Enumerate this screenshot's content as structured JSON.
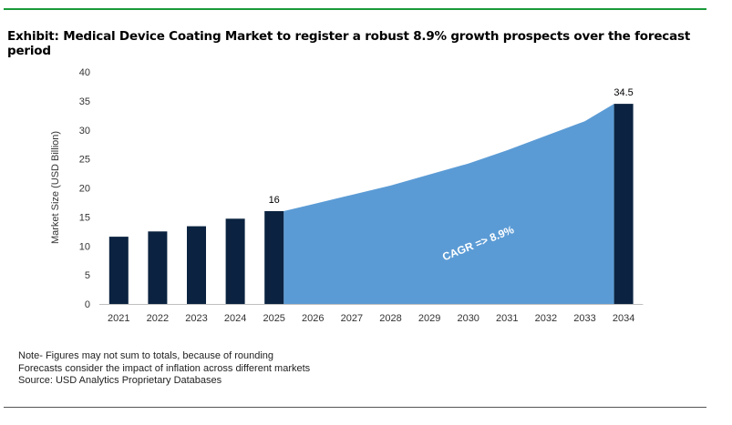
{
  "title": "Exhibit: Medical Device Coating Market to register a robust 8.9% growth prospects over the forecast period",
  "notes": [
    "Note- Figures may not sum to totals, because of rounding",
    "Forecasts consider the impact of inflation across different markets",
    "Source: USD Analytics Proprietary Databases"
  ],
  "colors": {
    "bar": "#0b2340",
    "area": "#5b9bd5",
    "rule": "#1a9a3a"
  },
  "chart_data": {
    "type": "bar",
    "ylabel": "Market Size (USD Billion)",
    "ylim": [
      0,
      40
    ],
    "yticks": [
      0,
      5,
      10,
      15,
      20,
      25,
      30,
      35,
      40
    ],
    "grid": false,
    "categories": [
      "2021",
      "2022",
      "2023",
      "2024",
      "2025",
      "2026",
      "2027",
      "2028",
      "2029",
      "2030",
      "2031",
      "2032",
      "2033",
      "2034"
    ],
    "bars": [
      {
        "x": "2021",
        "value": 11.6
      },
      {
        "x": "2022",
        "value": 12.5
      },
      {
        "x": "2023",
        "value": 13.4
      },
      {
        "x": "2024",
        "value": 14.7
      },
      {
        "x": "2025",
        "value": 16,
        "label": "16"
      },
      {
        "x": "2034",
        "value": 34.5,
        "label": "34.5"
      }
    ],
    "area": {
      "x": [
        "2025",
        "2026",
        "2027",
        "2028",
        "2029",
        "2030",
        "2031",
        "2032",
        "2033",
        "2034"
      ],
      "values": [
        16,
        17.2,
        18.8,
        20.4,
        22.3,
        24.2,
        26.5,
        29.0,
        31.5,
        34.5
      ]
    },
    "annotation": "CAGR => 8.9%"
  }
}
